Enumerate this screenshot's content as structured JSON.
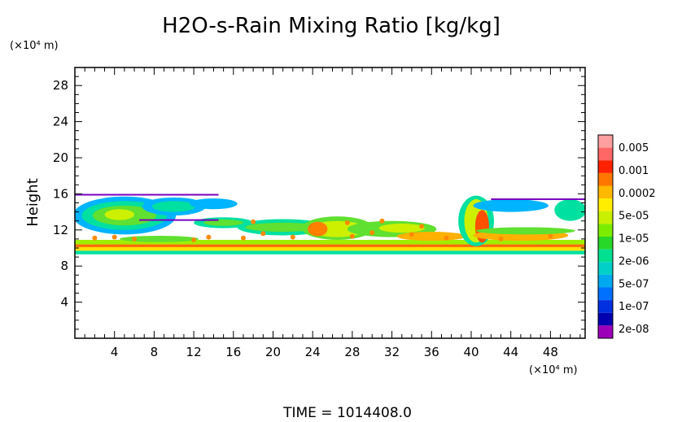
{
  "chart_data": {
    "type": "heatmap",
    "title": "H2O-s-Rain Mixing Ratio [kg/kg]",
    "ylabel": "Height",
    "x_unit": "(×10⁴ m)",
    "y_unit": "(×10⁴ m)",
    "xlim": [
      0,
      51.5
    ],
    "ylim": [
      0,
      30
    ],
    "x_ticks": [
      4,
      8,
      12,
      16,
      20,
      24,
      28,
      32,
      36,
      40,
      44,
      48
    ],
    "y_ticks": [
      4,
      8,
      12,
      16,
      20,
      24,
      28
    ],
    "footer": "TIME  =  1014408.0",
    "colorbar": {
      "labels": [
        "0.005",
        "0.001",
        "0.0002",
        "5e-05",
        "1e-05",
        "2e-06",
        "5e-07",
        "1e-07",
        "2e-08"
      ],
      "colors": [
        "#ff9f9f",
        "#ff6666",
        "#ff2200",
        "#ff7700",
        "#ffb800",
        "#ffee00",
        "#c8f000",
        "#7ded00",
        "#28d828",
        "#00e090",
        "#00d0c8",
        "#00a8f0",
        "#0070ff",
        "#0030e0",
        "#0000b0",
        "#9b00b8"
      ]
    },
    "bands": [
      {
        "x0": 0,
        "x1": 51.5,
        "y0": 9.3,
        "y1": 9.7,
        "color": "#00e0a0"
      },
      {
        "x0": 0,
        "x1": 51.5,
        "y0": 9.7,
        "y1": 10.1,
        "color": "#ffe000"
      },
      {
        "x0": 0,
        "x1": 51.5,
        "y0": 10.1,
        "y1": 10.4,
        "color": "#ff6a00"
      },
      {
        "x0": 0,
        "x1": 51.5,
        "y0": 10.4,
        "y1": 10.9,
        "color": "#a0ee00"
      }
    ],
    "regions": [
      {
        "cx": 5,
        "cy": 13.6,
        "rx": 5.2,
        "ry": 2.1,
        "color": "#00b4ff"
      },
      {
        "cx": 5,
        "cy": 13.6,
        "rx": 4.3,
        "ry": 1.6,
        "color": "#00e0a0"
      },
      {
        "cx": 5,
        "cy": 13.6,
        "rx": 3.2,
        "ry": 1.1,
        "color": "#60e030"
      },
      {
        "cx": 4.5,
        "cy": 13.7,
        "rx": 1.5,
        "ry": 0.6,
        "color": "#ccf000"
      },
      {
        "cx": 10,
        "cy": 14.6,
        "rx": 3.2,
        "ry": 1.0,
        "color": "#00b4ff"
      },
      {
        "cx": 10,
        "cy": 14.6,
        "rx": 2.2,
        "ry": 0.6,
        "color": "#00e0a0"
      },
      {
        "cx": 14,
        "cy": 14.9,
        "rx": 2.4,
        "ry": 0.6,
        "color": "#00b4ff"
      },
      {
        "cx": 15,
        "cy": 12.8,
        "rx": 3,
        "ry": 0.6,
        "color": "#00e0a0"
      },
      {
        "cx": 15,
        "cy": 12.8,
        "rx": 2,
        "ry": 0.35,
        "color": "#60e030"
      },
      {
        "cx": 21,
        "cy": 12.3,
        "rx": 4.6,
        "ry": 0.9,
        "color": "#00e0a0"
      },
      {
        "cx": 21,
        "cy": 12.3,
        "rx": 3.8,
        "ry": 0.5,
        "color": "#60e030"
      },
      {
        "cx": 26.5,
        "cy": 12.2,
        "rx": 3.6,
        "ry": 1.3,
        "color": "#60e030"
      },
      {
        "cx": 26.5,
        "cy": 12.1,
        "rx": 2.8,
        "ry": 0.9,
        "color": "#ccf000"
      },
      {
        "cx": 24.5,
        "cy": 12.1,
        "rx": 1.0,
        "ry": 0.8,
        "color": "#ff8000"
      },
      {
        "cx": 32,
        "cy": 12.1,
        "rx": 4.5,
        "ry": 0.9,
        "color": "#60e030"
      },
      {
        "cx": 33,
        "cy": 12.2,
        "rx": 2.3,
        "ry": 0.5,
        "color": "#ccf000"
      },
      {
        "cx": 36,
        "cy": 11.3,
        "rx": 3.5,
        "ry": 0.5,
        "color": "#ffb000"
      },
      {
        "cx": 40.5,
        "cy": 13.0,
        "rx": 1.8,
        "ry": 2.8,
        "color": "#00e0a0"
      },
      {
        "cx": 40.5,
        "cy": 13.0,
        "rx": 1.2,
        "ry": 2.4,
        "color": "#ccf000"
      },
      {
        "cx": 41.1,
        "cy": 12.4,
        "rx": 0.7,
        "ry": 1.8,
        "color": "#ff5000"
      },
      {
        "cx": 44,
        "cy": 14.7,
        "rx": 3.8,
        "ry": 0.7,
        "color": "#00b4ff"
      },
      {
        "cx": 50,
        "cy": 14.2,
        "rx": 1.6,
        "ry": 1.2,
        "color": "#00e0a0"
      },
      {
        "cx": 45,
        "cy": 11.4,
        "rx": 4.8,
        "ry": 0.6,
        "color": "#ffb000"
      },
      {
        "cx": 45.5,
        "cy": 11.9,
        "rx": 5,
        "ry": 0.4,
        "color": "#60e030"
      },
      {
        "cx": 8.5,
        "cy": 11.0,
        "rx": 4,
        "ry": 0.35,
        "color": "#60e030"
      }
    ],
    "purple_edges": [
      {
        "x0": 0,
        "x1": 14.5,
        "y": 15.9
      },
      {
        "x0": 6.5,
        "x1": 14.5,
        "y": 13.1
      },
      {
        "x0": 42,
        "x1": 51.5,
        "y": 15.4
      }
    ],
    "speckles": [
      {
        "x": 2,
        "y": 11.1
      },
      {
        "x": 4,
        "y": 11.2
      },
      {
        "x": 6,
        "y": 11.0
      },
      {
        "x": 12,
        "y": 10.9
      },
      {
        "x": 13.5,
        "y": 11.2
      },
      {
        "x": 17,
        "y": 11.1
      },
      {
        "x": 19,
        "y": 11.6
      },
      {
        "x": 22,
        "y": 11.2
      },
      {
        "x": 28,
        "y": 11.3
      },
      {
        "x": 30,
        "y": 11.7
      },
      {
        "x": 34,
        "y": 11.5
      },
      {
        "x": 37.5,
        "y": 11.1
      },
      {
        "x": 43,
        "y": 11.0
      },
      {
        "x": 48,
        "y": 11.3
      },
      {
        "x": 27.5,
        "y": 12.8
      },
      {
        "x": 31,
        "y": 13.0
      },
      {
        "x": 18,
        "y": 12.9
      },
      {
        "x": 35,
        "y": 12.4
      }
    ]
  }
}
